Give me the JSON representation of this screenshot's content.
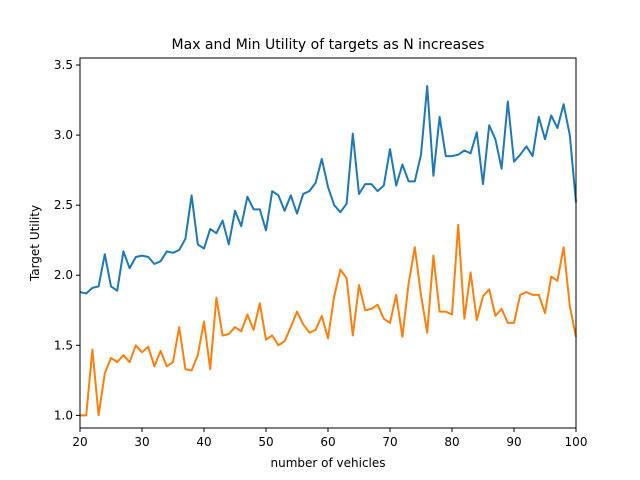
{
  "chart_data": {
    "type": "line",
    "title": "Max and Min Utility of targets as N increases",
    "xlabel": "number of vehicles",
    "ylabel": "Target Utility",
    "xlim": [
      20,
      100
    ],
    "ylim": [
      0.91,
      3.55
    ],
    "xticks": [
      20,
      30,
      40,
      50,
      60,
      70,
      80,
      90,
      100
    ],
    "yticks": [
      1.0,
      1.5,
      2.0,
      2.5,
      3.0,
      3.5
    ],
    "grid": false,
    "legend": "none",
    "x": [
      20,
      21,
      22,
      23,
      24,
      25,
      26,
      27,
      28,
      29,
      30,
      31,
      32,
      33,
      34,
      35,
      36,
      37,
      38,
      39,
      40,
      41,
      42,
      43,
      44,
      45,
      46,
      47,
      48,
      49,
      50,
      51,
      52,
      53,
      54,
      55,
      56,
      57,
      58,
      59,
      60,
      61,
      62,
      63,
      64,
      65,
      66,
      67,
      68,
      69,
      70,
      71,
      72,
      73,
      74,
      75,
      76,
      77,
      78,
      79,
      80,
      81,
      82,
      83,
      84,
      85,
      86,
      87,
      88,
      89,
      90,
      91,
      92,
      93,
      94,
      95,
      96,
      97,
      98,
      99,
      100
    ],
    "series": [
      {
        "color": "#1f77b4",
        "values": [
          1.88,
          1.87,
          1.91,
          1.92,
          2.15,
          1.92,
          1.89,
          2.17,
          2.05,
          2.13,
          2.14,
          2.13,
          2.08,
          2.1,
          2.17,
          2.16,
          2.18,
          2.26,
          2.57,
          2.22,
          2.19,
          2.33,
          2.3,
          2.39,
          2.22,
          2.46,
          2.35,
          2.56,
          2.47,
          2.47,
          2.32,
          2.6,
          2.57,
          2.46,
          2.57,
          2.44,
          2.58,
          2.6,
          2.66,
          2.83,
          2.63,
          2.5,
          2.45,
          2.51,
          3.01,
          2.58,
          2.65,
          2.65,
          2.6,
          2.64,
          2.9,
          2.64,
          2.79,
          2.67,
          2.67,
          2.86,
          3.35,
          2.71,
          3.13,
          2.85,
          2.85,
          2.86,
          2.89,
          2.87,
          3.02,
          2.65,
          3.07,
          2.97,
          2.76,
          3.24,
          2.81,
          2.86,
          2.92,
          2.85,
          3.13,
          2.97,
          3.14,
          3.05,
          3.22,
          3.0,
          2.52
        ]
      },
      {
        "color": "#ff7f0e",
        "values": [
          1.0,
          1.0,
          1.47,
          1.0,
          1.3,
          1.41,
          1.38,
          1.43,
          1.38,
          1.5,
          1.45,
          1.49,
          1.35,
          1.46,
          1.35,
          1.38,
          1.63,
          1.33,
          1.32,
          1.43,
          1.67,
          1.33,
          1.84,
          1.57,
          1.58,
          1.63,
          1.6,
          1.72,
          1.61,
          1.8,
          1.54,
          1.57,
          1.5,
          1.53,
          1.63,
          1.74,
          1.65,
          1.59,
          1.61,
          1.71,
          1.55,
          1.85,
          2.04,
          1.98,
          1.57,
          1.93,
          1.75,
          1.76,
          1.79,
          1.69,
          1.66,
          1.86,
          1.56,
          1.94,
          2.2,
          1.86,
          1.59,
          2.14,
          1.74,
          1.74,
          1.72,
          2.36,
          1.69,
          2.02,
          1.68,
          1.85,
          1.9,
          1.71,
          1.76,
          1.66,
          1.66,
          1.86,
          1.88,
          1.86,
          1.86,
          1.73,
          1.99,
          1.96,
          2.2,
          1.78,
          1.56
        ]
      }
    ]
  }
}
